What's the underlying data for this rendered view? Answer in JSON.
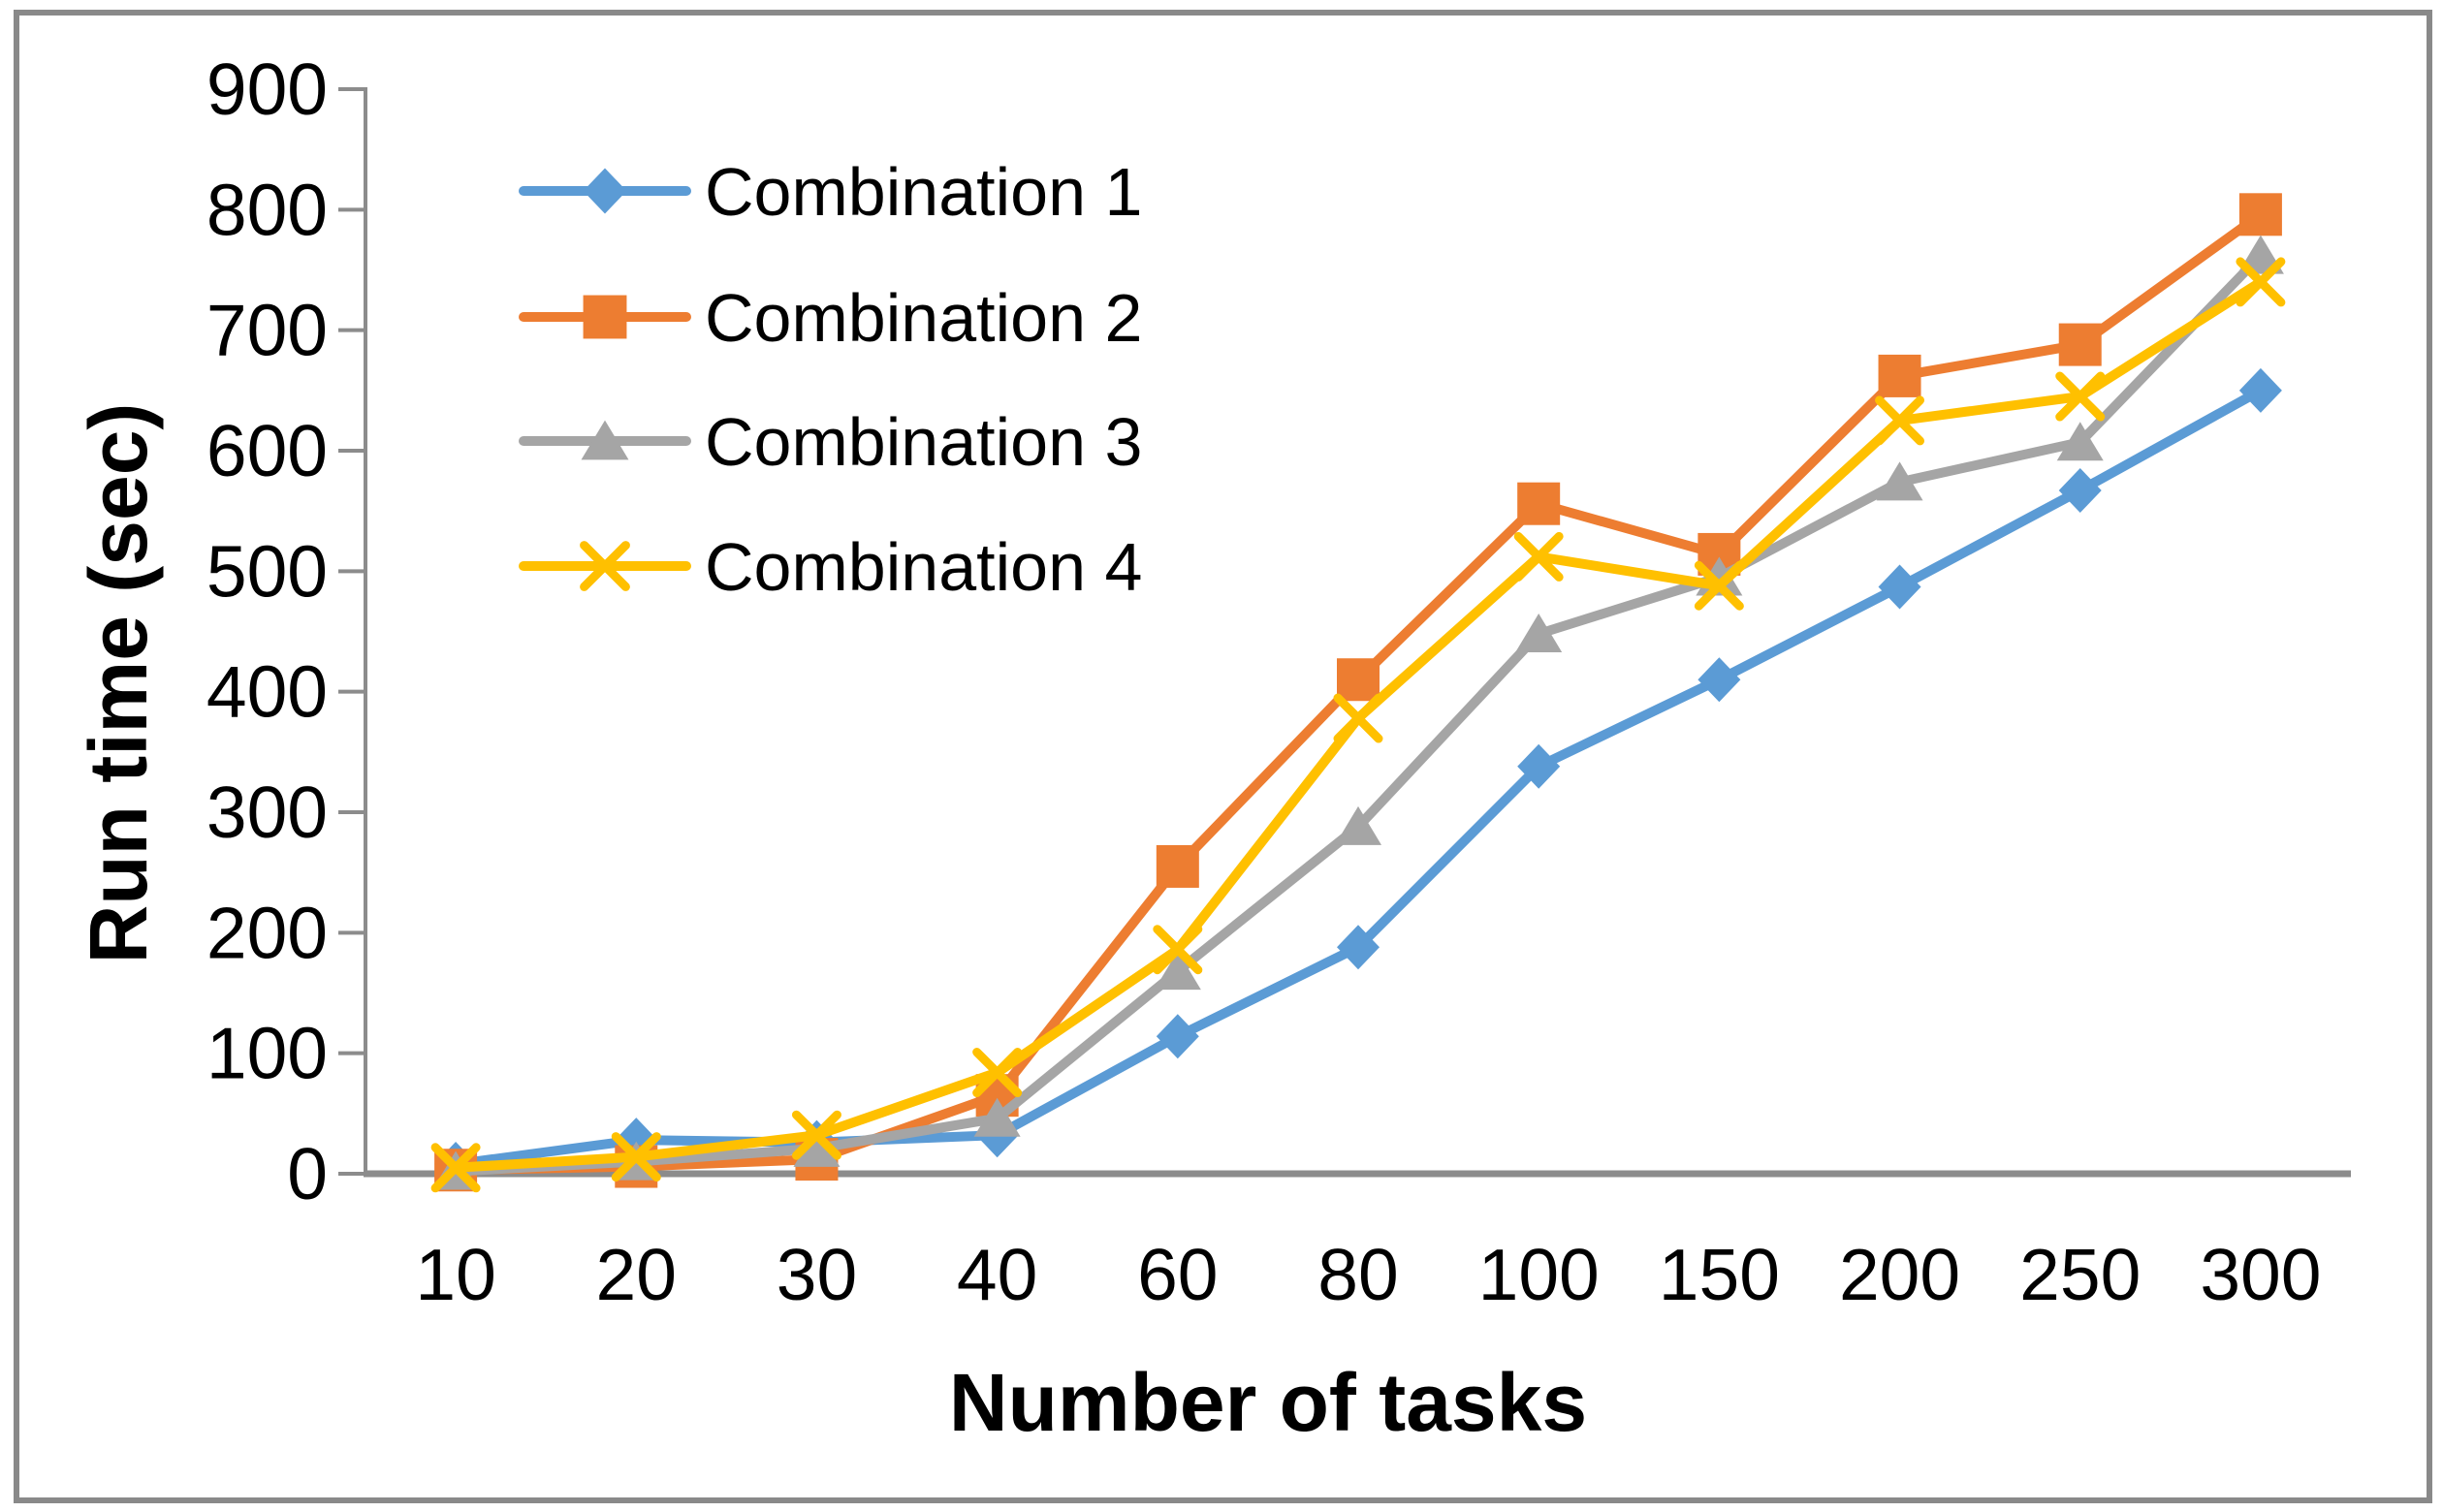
{
  "chart_data": {
    "type": "line",
    "title": "",
    "xlabel": "Number of tasks",
    "ylabel": "Run time (sec)",
    "categories": [
      "10",
      "20",
      "30",
      "40",
      "60",
      "80",
      "100",
      "150",
      "200",
      "250",
      "300"
    ],
    "ylim": [
      0,
      900
    ],
    "ytick_step": 100,
    "ytick_labels": [
      "0",
      "100",
      "200",
      "300",
      "400",
      "500",
      "600",
      "700",
      "800",
      "900"
    ],
    "grid": false,
    "legend_position": "inside-top-left",
    "frame_color": "#898989",
    "axis_color": "#8C8C8C",
    "text_color": "#000000",
    "series": [
      {
        "name": "Combination 1",
        "color": "#5B9BD5",
        "marker": "diamond",
        "values": [
          8,
          28,
          26,
          32,
          114,
          188,
          338,
          410,
          487,
          567,
          650
        ]
      },
      {
        "name": "Combination 2",
        "color": "#ED7D31",
        "marker": "square",
        "values": [
          3,
          6,
          12,
          65,
          255,
          410,
          556,
          514,
          662,
          688,
          796
        ]
      },
      {
        "name": "Combination 3",
        "color": "#A5A5A5",
        "marker": "triangle",
        "values": [
          2,
          10,
          21,
          46,
          168,
          288,
          448,
          495,
          574,
          607,
          762
        ]
      },
      {
        "name": "Combination 4",
        "color": "#FFC000",
        "marker": "x",
        "values": [
          5,
          14,
          32,
          84,
          186,
          378,
          512,
          488,
          625,
          645,
          740
        ]
      }
    ]
  }
}
